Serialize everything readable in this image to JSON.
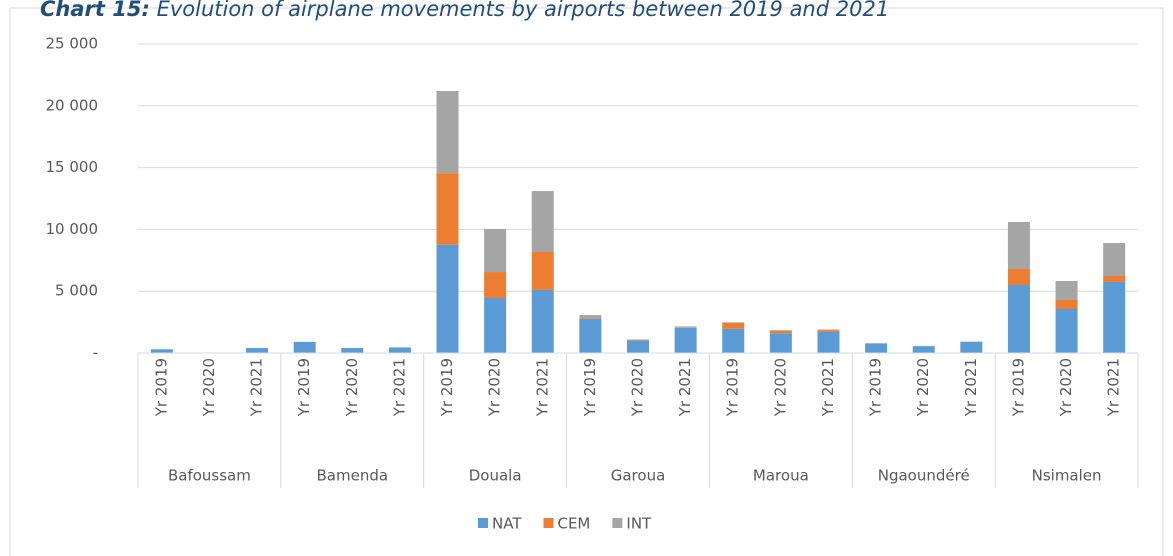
{
  "chart_data": {
    "type": "bar",
    "stacked": true,
    "title_label": "Chart 15:",
    "title": "Evolution of airplane movements by airports between 2019 and 2021",
    "categories": [
      "Yr 2019",
      "Yr 2020",
      "Yr 2021",
      "Yr 2019",
      "Yr 2020",
      "Yr 2021",
      "Yr 2019",
      "Yr 2020",
      "Yr 2021",
      "Yr 2019",
      "Yr 2020",
      "Yr 2021",
      "Yr 2019",
      "Yr 2020",
      "Yr 2021",
      "Yr 2019",
      "Yr 2020",
      "Yr 2021",
      "Yr 2019",
      "Yr 2020",
      "Yr 2021"
    ],
    "groups": [
      "Bafoussam",
      "Bamenda",
      "Douala",
      "Garoua",
      "Maroua",
      "Ngaoundéré",
      "Nsimalen"
    ],
    "series": [
      {
        "name": "NAT",
        "color": "#5b9bd5",
        "values": [
          300,
          0,
          400,
          900,
          400,
          450,
          8750,
          4450,
          5100,
          2750,
          1000,
          2050,
          1950,
          1600,
          1700,
          750,
          550,
          900,
          5500,
          3560,
          5750
        ]
      },
      {
        "name": "CEM",
        "color": "#ed7d31",
        "values": [
          0,
          0,
          0,
          0,
          0,
          0,
          5800,
          2100,
          3070,
          50,
          50,
          30,
          480,
          200,
          150,
          0,
          0,
          0,
          1300,
          730,
          480
        ]
      },
      {
        "name": "INT",
        "color": "#a5a5a5",
        "values": [
          0,
          0,
          0,
          0,
          0,
          0,
          6650,
          3480,
          4930,
          270,
          50,
          70,
          50,
          50,
          50,
          50,
          30,
          30,
          3800,
          1540,
          2670
        ]
      }
    ],
    "ylim": [
      0,
      25000
    ],
    "yticks": [
      {
        "value": 0,
        "label": "-"
      },
      {
        "value": 5000,
        "label": "5 000"
      },
      {
        "value": 10000,
        "label": "10 000"
      },
      {
        "value": 15000,
        "label": "15 000"
      },
      {
        "value": 20000,
        "label": "20 000"
      },
      {
        "value": 25000,
        "label": "25 000"
      }
    ],
    "grid": true,
    "legend": "bottom"
  }
}
